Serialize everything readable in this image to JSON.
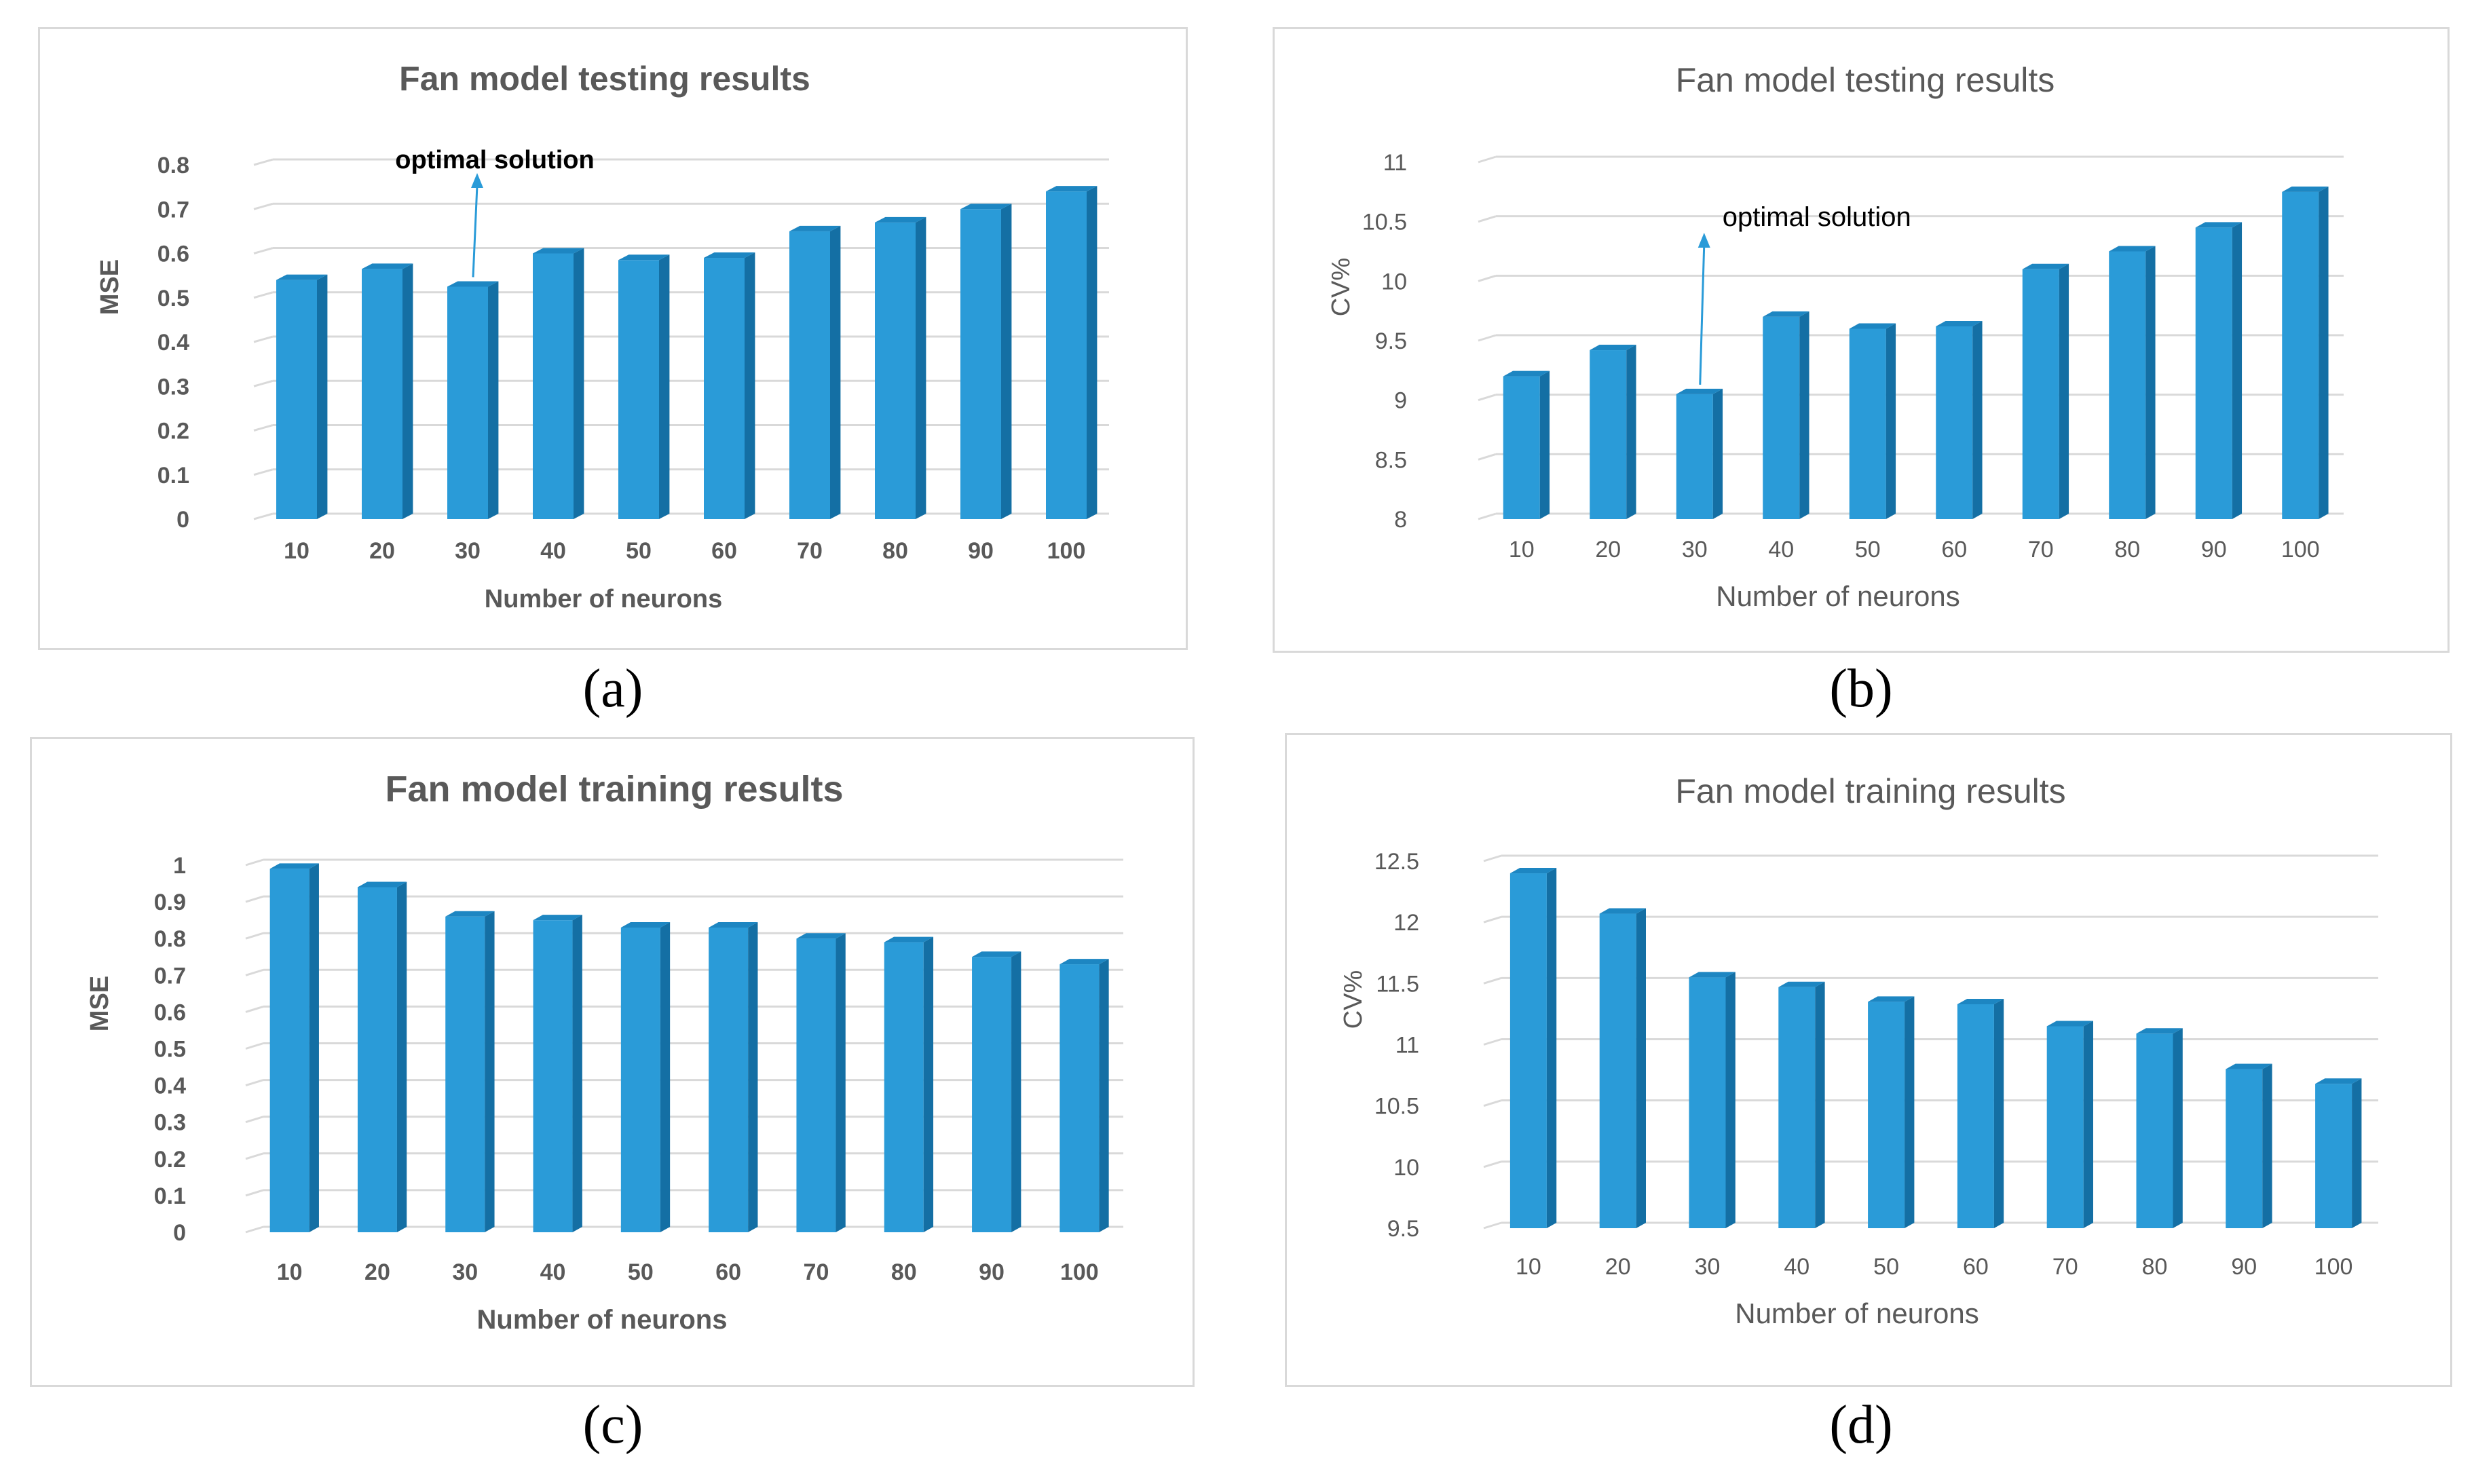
{
  "colors": {
    "bar_front": "#2a9bd8",
    "bar_side": "#146fa4",
    "bar_top": "#1d86c2",
    "grid": "#d9d9d9",
    "text": "#595959",
    "annotation": "#000000",
    "arrow": "#2a9bd8"
  },
  "captions": [
    "(a)",
    "(b)",
    "(c)",
    "(d)"
  ],
  "chart_data": [
    {
      "type": "bar",
      "title": "Fan model testing results",
      "xlabel": "Number of neurons",
      "ylabel": "MSE",
      "categories": [
        "10",
        "20",
        "30",
        "40",
        "50",
        "60",
        "70",
        "80",
        "90",
        "100"
      ],
      "values": [
        0.54,
        0.565,
        0.525,
        0.6,
        0.585,
        0.59,
        0.65,
        0.67,
        0.7,
        0.74
      ],
      "ylim": [
        0,
        0.8
      ],
      "yticks": [
        "0",
        "0.1",
        "0.2",
        "0.3",
        "0.4",
        "0.5",
        "0.6",
        "0.7",
        "0.8"
      ],
      "annotation": {
        "text": "optimal solution",
        "category": "30"
      },
      "bold_labels": true
    },
    {
      "type": "bar",
      "title": "Fan model testing results",
      "xlabel": "Number of neurons",
      "ylabel": "CV%",
      "categories": [
        "10",
        "20",
        "30",
        "40",
        "50",
        "60",
        "70",
        "80",
        "90",
        "100"
      ],
      "values": [
        9.2,
        9.42,
        9.05,
        9.7,
        9.6,
        9.62,
        10.1,
        10.25,
        10.45,
        10.75
      ],
      "ylim": [
        8,
        11
      ],
      "yticks": [
        "8",
        "8.5",
        "9",
        "9.5",
        "10",
        "10.5",
        "11"
      ],
      "annotation": {
        "text": "optimal solution",
        "category": "30"
      },
      "bold_labels": false
    },
    {
      "type": "bar",
      "title": "Fan model training results",
      "xlabel": "Number of neurons",
      "ylabel": "MSE",
      "categories": [
        "10",
        "20",
        "30",
        "40",
        "50",
        "60",
        "70",
        "80",
        "90",
        "100"
      ],
      "values": [
        0.99,
        0.94,
        0.86,
        0.85,
        0.83,
        0.83,
        0.8,
        0.79,
        0.75,
        0.73
      ],
      "ylim": [
        0,
        1
      ],
      "yticks": [
        "0",
        "0.1",
        "0.2",
        "0.3",
        "0.4",
        "0.5",
        "0.6",
        "0.7",
        "0.8",
        "0.9",
        "1"
      ],
      "bold_labels": true
    },
    {
      "type": "bar",
      "title": "Fan model training results",
      "xlabel": "Number of neurons",
      "ylabel": "CV%",
      "categories": [
        "10",
        "20",
        "30",
        "40",
        "50",
        "60",
        "70",
        "80",
        "90",
        "100"
      ],
      "values": [
        12.4,
        12.07,
        11.55,
        11.47,
        11.35,
        11.33,
        11.15,
        11.09,
        10.8,
        10.68
      ],
      "ylim": [
        9.5,
        12.5
      ],
      "yticks": [
        "9.5",
        "10",
        "10.5",
        "11",
        "11.5",
        "12",
        "12.5"
      ],
      "bold_labels": false
    }
  ]
}
